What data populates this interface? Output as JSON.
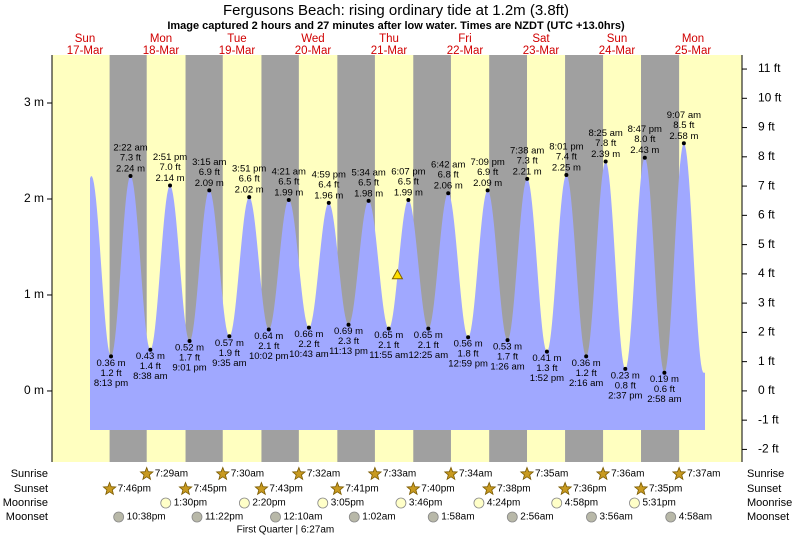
{
  "chart_data": {
    "type": "tide",
    "title": "Fergusons Beach: rising  ordinary tide at 1.2m (3.8ft)",
    "subtitle": "Image captured 2 hours and 27 minutes after low water. Times are NZDT (UTC +13.0hrs)",
    "ylim": [
      -0.74,
      3.5
    ],
    "yticks": [
      {
        "value": 3,
        "label": "3 m"
      },
      {
        "value": 2,
        "label": "2 m"
      },
      {
        "value": 1,
        "label": "1 m"
      },
      {
        "value": 0,
        "label": "0 m"
      }
    ],
    "y2lim": [
      -2.43,
      11.48
    ],
    "y2ticks": [
      {
        "value": 11,
        "label": "11 ft"
      },
      {
        "value": 10,
        "label": "10 ft"
      },
      {
        "value": 9,
        "label": "9 ft"
      },
      {
        "value": 8,
        "label": "8 ft"
      },
      {
        "value": 7,
        "label": "7 ft"
      },
      {
        "value": 6,
        "label": "6 ft"
      },
      {
        "value": 5,
        "label": "5 ft"
      },
      {
        "value": 4,
        "label": "4 ft"
      },
      {
        "value": 3,
        "label": "3 ft"
      },
      {
        "value": 2,
        "label": "2 ft"
      },
      {
        "value": 1,
        "label": "1 ft"
      },
      {
        "value": 0,
        "label": "0 ft"
      },
      {
        "value": -1,
        "label": "-1 ft"
      },
      {
        "value": -2,
        "label": "-2 ft"
      }
    ],
    "colors": {
      "day": "#ffffc0",
      "night": "#a0a0a0",
      "water": "#a0a8ff"
    },
    "current": {
      "height": 1.2
    },
    "row_labels": {
      "sunrise": "Sunrise",
      "sunset": "Sunset",
      "moonrise": "Moonrise",
      "moonset": "Moonset"
    },
    "days": [
      {
        "weekday": "Sun",
        "date": "17-Mar",
        "tides": [
          {
            "time": "8:13 pm",
            "height": 0.36,
            "height_label": "0.36 m",
            "ft_label": "1.2 ft"
          }
        ],
        "sunset": "7:46pm",
        "moonset": "10:38pm"
      },
      {
        "weekday": "Mon",
        "date": "18-Mar",
        "tides": [
          {
            "time": "2:22 am",
            "height": 2.24,
            "height_label": "2.24 m",
            "ft_label": "7.3 ft"
          },
          {
            "time": "8:38 am",
            "height": 0.43,
            "height_label": "0.43 m",
            "ft_label": "1.4 ft"
          },
          {
            "time": "2:51 pm",
            "height": 2.14,
            "height_label": "2.14 m",
            "ft_label": "7.0 ft"
          },
          {
            "time": "9:01 pm",
            "height": 0.52,
            "height_label": "0.52 m",
            "ft_label": "1.7 ft"
          }
        ],
        "sunrise": "7:29am",
        "sunset": "7:45pm",
        "moonrise": "1:30pm",
        "moonset": "11:22pm"
      },
      {
        "weekday": "Tue",
        "date": "19-Mar",
        "tides": [
          {
            "time": "3:15 am",
            "height": 2.09,
            "height_label": "2.09 m",
            "ft_label": "6.9 ft"
          },
          {
            "time": "9:35 am",
            "height": 0.57,
            "height_label": "0.57 m",
            "ft_label": "1.9 ft"
          },
          {
            "time": "3:51 pm",
            "height": 2.02,
            "height_label": "2.02 m",
            "ft_label": "6.6 ft"
          },
          {
            "time": "10:02 pm",
            "height": 0.64,
            "height_label": "0.64 m",
            "ft_label": "2.1 ft"
          }
        ],
        "sunrise": "7:30am",
        "sunset": "7:43pm",
        "moonrise": "2:20pm"
      },
      {
        "weekday": "Wed",
        "date": "20-Mar",
        "tides": [
          {
            "time": "4:21 am",
            "height": 1.99,
            "height_label": "1.99 m",
            "ft_label": "6.5 ft"
          },
          {
            "time": "10:43 am",
            "height": 0.66,
            "height_label": "0.66 m",
            "ft_label": "2.2 ft"
          },
          {
            "time": "4:59 pm",
            "height": 1.96,
            "height_label": "1.96 m",
            "ft_label": "6.4 ft"
          },
          {
            "time": "11:13 pm",
            "height": 0.69,
            "height_label": "0.69 m",
            "ft_label": "2.3 ft"
          }
        ],
        "sunrise": "7:32am",
        "sunset": "7:41pm",
        "moonrise": "3:05pm",
        "moonset": "12:10am",
        "moon_phase": "First Quarter | 6:27am"
      },
      {
        "weekday": "Thu",
        "date": "21-Mar",
        "tides": [
          {
            "time": "5:34 am",
            "height": 1.98,
            "height_label": "1.98 m",
            "ft_label": "6.5 ft"
          },
          {
            "time": "11:55 am",
            "height": 0.65,
            "height_label": "0.65 m",
            "ft_label": "2.1 ft"
          },
          {
            "time": "6:07 pm",
            "height": 1.99,
            "height_label": "1.99 m",
            "ft_label": "6.5 ft"
          }
        ],
        "sunrise": "7:33am",
        "sunset": "7:40pm",
        "moonrise": "3:46pm",
        "moonset": "1:02am"
      },
      {
        "weekday": "Fri",
        "date": "22-Mar",
        "tides": [
          {
            "time": "12:25 am",
            "height": 0.65,
            "height_label": "0.65 m",
            "ft_label": "2.1 ft"
          },
          {
            "time": "6:42 am",
            "height": 2.06,
            "height_label": "2.06 m",
            "ft_label": "6.8 ft"
          },
          {
            "time": "12:59 pm",
            "height": 0.56,
            "height_label": "0.56 m",
            "ft_label": "1.8 ft"
          },
          {
            "time": "7:09 pm",
            "height": 2.09,
            "height_label": "2.09 m",
            "ft_label": "6.9 ft"
          }
        ],
        "sunrise": "7:34am",
        "sunset": "7:38pm",
        "moonrise": "4:24pm",
        "moonset": "1:58am"
      },
      {
        "weekday": "Sat",
        "date": "23-Mar",
        "tides": [
          {
            "time": "1:26 am",
            "height": 0.53,
            "height_label": "0.53 m",
            "ft_label": "1.7 ft"
          },
          {
            "time": "7:38 am",
            "height": 2.21,
            "height_label": "2.21 m",
            "ft_label": "7.3 ft"
          },
          {
            "time": "1:52 pm",
            "height": 0.41,
            "height_label": "0.41 m",
            "ft_label": "1.3 ft"
          },
          {
            "time": "8:01 pm",
            "height": 2.25,
            "height_label": "2.25 m",
            "ft_label": "7.4 ft"
          }
        ],
        "sunrise": "7:35am",
        "sunset": "7:36pm",
        "moonrise": "4:58pm",
        "moonset": "2:56am"
      },
      {
        "weekday": "Sun",
        "date": "24-Mar",
        "tides": [
          {
            "time": "2:16 am",
            "height": 0.36,
            "height_label": "0.36 m",
            "ft_label": "1.2 ft"
          },
          {
            "time": "8:25 am",
            "height": 2.39,
            "height_label": "2.39 m",
            "ft_label": "7.8 ft"
          },
          {
            "time": "2:37 pm",
            "height": 0.23,
            "height_label": "0.23 m",
            "ft_label": "0.8 ft"
          },
          {
            "time": "8:47 pm",
            "height": 2.43,
            "height_label": "2.43 m",
            "ft_label": "8.0 ft"
          }
        ],
        "sunrise": "7:36am",
        "sunset": "7:35pm",
        "moonrise": "5:31pm",
        "moonset": "3:56am"
      },
      {
        "weekday": "Mon",
        "date": "25-Mar",
        "tides": [
          {
            "time": "2:58 am",
            "height": 0.19,
            "height_label": "0.19 m",
            "ft_label": "0.6 ft"
          },
          {
            "time": "9:07 am",
            "height": 2.58,
            "height_label": "2.58 m",
            "ft_label": "8.5 ft"
          }
        ],
        "sunrise": "7:37am",
        "moonset": "4:58am"
      }
    ]
  }
}
